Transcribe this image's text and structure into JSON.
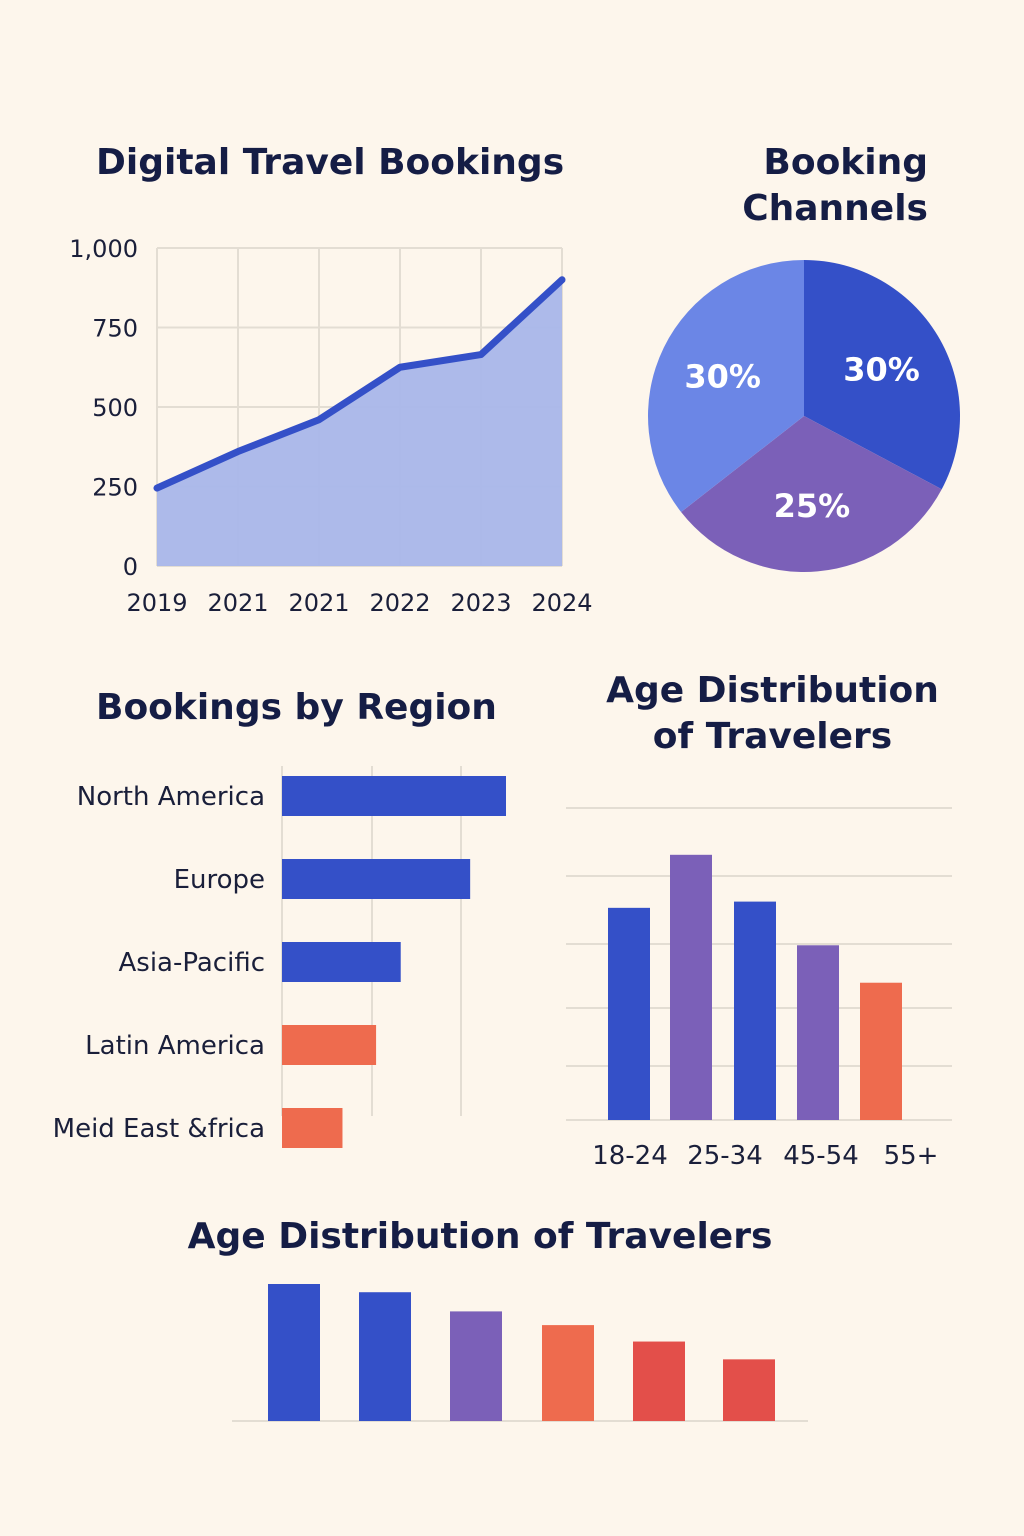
{
  "colors": {
    "background": "#fdf6ec",
    "title": "#151d45",
    "blue": "#3450c8",
    "light_blue": "#6b86e6",
    "purple": "#7b60b8",
    "orange": "#ee6b4e",
    "red": "#e34f4a",
    "area_fill": "#a9b6ea",
    "grid": "#e3ddd3"
  },
  "chart_data": [
    {
      "id": "line",
      "type": "area",
      "title": "Digital Travel Bookings",
      "x": [
        "2019",
        "2021",
        "2021",
        "2022",
        "2023",
        "2024"
      ],
      "values": [
        245,
        360,
        460,
        625,
        665,
        900
      ],
      "ylim": [
        0,
        1000
      ],
      "yticks": [
        "0",
        "250",
        "500",
        "750",
        "1,000"
      ],
      "grid": true,
      "color": "#3450c8"
    },
    {
      "id": "pie",
      "type": "pie",
      "title": "Booking Channels",
      "slices": [
        {
          "label": "30%",
          "value": 30,
          "color": "#3450c8"
        },
        {
          "label": "25%",
          "value": 25,
          "color": "#7b60b8"
        },
        {
          "label": "30%",
          "value": 30,
          "color": "#6b86e6"
        }
      ]
    },
    {
      "id": "region",
      "type": "bar",
      "orientation": "horizontal",
      "title": "Bookings by Region",
      "categories": [
        "North America",
        "Europe",
        "Asia-Pacific",
        "Latin America",
        "Meid East &frica"
      ],
      "values": [
        100,
        84,
        53,
        42,
        27
      ],
      "colors": [
        "#3450c8",
        "#3450c8",
        "#3450c8",
        "#ee6b4e",
        "#ee6b4e"
      ],
      "xlim": [
        0,
        100
      ],
      "grid": true
    },
    {
      "id": "age1",
      "type": "bar",
      "title": "Age Distribution\nof Travelers",
      "categories": [
        "18-24",
        "25-34",
        "",
        "45-54",
        "55+"
      ],
      "values": [
        68,
        85,
        70,
        56,
        44
      ],
      "colors": [
        "#3450c8",
        "#7b60b8",
        "#3450c8",
        "#7b60b8",
        "#ee6b4e"
      ],
      "ylim": [
        0,
        100
      ],
      "grid": true
    },
    {
      "id": "age2",
      "type": "bar",
      "title": "Age Distribution of Travelers",
      "categories": [
        "",
        "",
        "",
        "",
        "",
        ""
      ],
      "values": [
        100,
        94,
        80,
        70,
        58,
        45
      ],
      "colors": [
        "#3450c8",
        "#3450c8",
        "#7b60b8",
        "#ee6b4e",
        "#e34f4a",
        "#e34f4a"
      ],
      "ylim": [
        0,
        100
      ],
      "grid": false
    }
  ]
}
